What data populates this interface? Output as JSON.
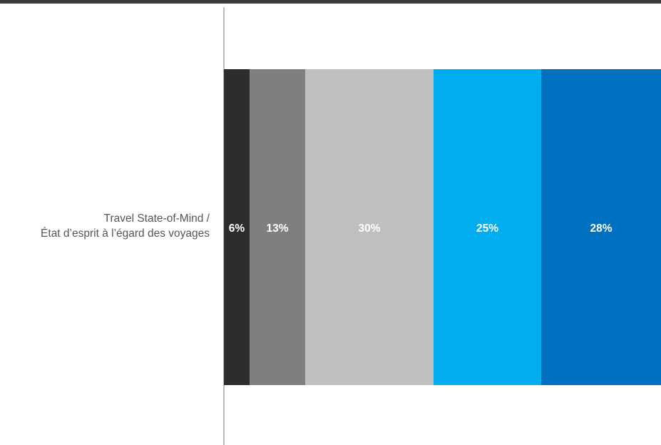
{
  "chart_data": {
    "type": "bar",
    "orientation": "horizontal",
    "stacked": true,
    "categories": [
      "Travel State-of-Mind / État d’esprit à l’égard des voyages"
    ],
    "category_label_lines": [
      "Travel State-of-Mind /",
      "État d’esprit à l’égard des voyages"
    ],
    "series": [
      {
        "values": [
          6
        ],
        "label": "6%",
        "color": "#2d2d2d"
      },
      {
        "values": [
          13
        ],
        "label": "13%",
        "color": "#7f7f7f"
      },
      {
        "values": [
          30
        ],
        "label": "30%",
        "color": "#bfbfbf"
      },
      {
        "values": [
          25
        ],
        "label": "25%",
        "color": "#00aeef"
      },
      {
        "values": [
          28
        ],
        "label": "28%",
        "color": "#0070c0"
      }
    ],
    "xlim": [
      0,
      102
    ],
    "grid": false,
    "legend": "none"
  }
}
